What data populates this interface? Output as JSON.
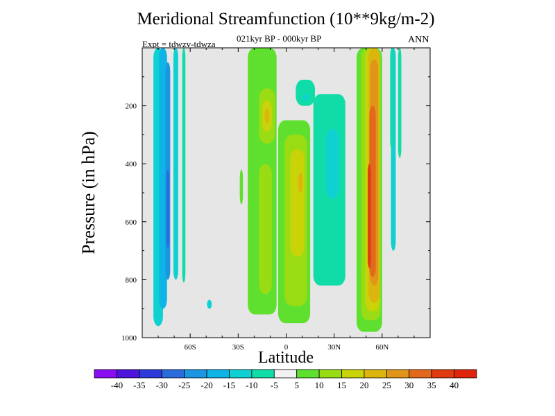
{
  "chart_data": {
    "type": "heatmap",
    "title": "Meridional Streamfunction (10**9kg/m-2)",
    "subtitle": "021kyr BP - 000kyr BP",
    "left_label": "Expt = tdwzv-tdwza",
    "right_label": "ANN",
    "xlabel": "Latitude",
    "ylabel": "Pressure (in hPa)",
    "xlim": [
      -90,
      90
    ],
    "ylim": [
      1000,
      0
    ],
    "x_ticks": [
      {
        "value": -60,
        "label": "60S"
      },
      {
        "value": -30,
        "label": "30S"
      },
      {
        "value": 0,
        "label": "0"
      },
      {
        "value": 30,
        "label": "30N"
      },
      {
        "value": 60,
        "label": "60N"
      }
    ],
    "y_ticks": [
      {
        "value": 200,
        "label": "200"
      },
      {
        "value": 400,
        "label": "400"
      },
      {
        "value": 600,
        "label": "600"
      },
      {
        "value": 800,
        "label": "800"
      },
      {
        "value": 1000,
        "label": "1000"
      }
    ],
    "zero_band_color": "#e6e6e6",
    "levels": [
      {
        "label": "-40",
        "color": "#8a0cf0"
      },
      {
        "label": "-35",
        "color": "#4d15dc"
      },
      {
        "label": "-30",
        "color": "#2f3adb"
      },
      {
        "label": "-25",
        "color": "#2b6cdc"
      },
      {
        "label": "-20",
        "color": "#1b97e2"
      },
      {
        "label": "-15",
        "color": "#0db4e5"
      },
      {
        "label": "-10",
        "color": "#0fd1d1"
      },
      {
        "label": "-5",
        "color": "#10dca8"
      },
      {
        "label": "5",
        "color": "#f2f2f2"
      },
      {
        "label": "10",
        "color": "#5fe02e"
      },
      {
        "label": "15",
        "color": "#9adc14"
      },
      {
        "label": "20",
        "color": "#c8d308"
      },
      {
        "label": "25",
        "color": "#dcb60e"
      },
      {
        "label": "30",
        "color": "#e0951a"
      },
      {
        "label": "35",
        "color": "#e2691c"
      },
      {
        "label": "40",
        "color": "#e03c10"
      },
      {
        "label": "",
        "color": "#e0240c"
      }
    ],
    "cells": [
      {
        "lat": -80,
        "p1": 0,
        "p2": 960,
        "w": 6,
        "v": -10
      },
      {
        "lat": -77,
        "p1": 0,
        "p2": 900,
        "w": 5,
        "v": -15
      },
      {
        "lat": -74,
        "p1": 50,
        "p2": 800,
        "w": 3,
        "v": -20
      },
      {
        "lat": -74,
        "p1": 420,
        "p2": 690,
        "w": 2,
        "v": -25
      },
      {
        "lat": -69,
        "p1": 0,
        "p2": 800,
        "w": 3,
        "v": -10
      },
      {
        "lat": -64,
        "p1": 0,
        "p2": 810,
        "w": 2,
        "v": -5
      },
      {
        "lat": -48,
        "p1": 870,
        "p2": 900,
        "w": 3,
        "v": -10
      },
      {
        "lat": -28,
        "p1": 420,
        "p2": 540,
        "w": 2,
        "v": 10
      },
      {
        "lat": -15,
        "p1": 0,
        "p2": 920,
        "w": 18,
        "v": 10
      },
      {
        "lat": -12,
        "p1": 140,
        "p2": 330,
        "w": 10,
        "v": 15
      },
      {
        "lat": -12,
        "p1": 180,
        "p2": 290,
        "w": 6,
        "v": 20
      },
      {
        "lat": -12,
        "p1": 210,
        "p2": 260,
        "w": 3,
        "v": 25
      },
      {
        "lat": -13,
        "p1": 400,
        "p2": 850,
        "w": 8,
        "v": 15
      },
      {
        "lat": 5,
        "p1": 250,
        "p2": 950,
        "w": 20,
        "v": 10
      },
      {
        "lat": 6,
        "p1": 300,
        "p2": 890,
        "w": 14,
        "v": 15
      },
      {
        "lat": 7,
        "p1": 350,
        "p2": 720,
        "w": 9,
        "v": 20
      },
      {
        "lat": 9,
        "p1": 430,
        "p2": 500,
        "w": 3,
        "v": 25
      },
      {
        "lat": 12,
        "p1": 110,
        "p2": 200,
        "w": 12,
        "v": -5
      },
      {
        "lat": 12,
        "p1": 160,
        "p2": 180,
        "w": 4,
        "v": -10
      },
      {
        "lat": 27,
        "p1": 160,
        "p2": 820,
        "w": 20,
        "v": -5
      },
      {
        "lat": 29,
        "p1": 280,
        "p2": 520,
        "w": 8,
        "v": -10
      },
      {
        "lat": 52,
        "p1": 0,
        "p2": 980,
        "w": 16,
        "v": 10
      },
      {
        "lat": 53,
        "p1": 0,
        "p2": 940,
        "w": 12,
        "v": 15
      },
      {
        "lat": 54,
        "p1": 0,
        "p2": 910,
        "w": 9,
        "v": 20
      },
      {
        "lat": 55,
        "p1": 0,
        "p2": 880,
        "w": 7,
        "v": 25
      },
      {
        "lat": 55,
        "p1": 40,
        "p2": 820,
        "w": 5,
        "v": 30
      },
      {
        "lat": 54,
        "p1": 200,
        "p2": 790,
        "w": 4,
        "v": 35
      },
      {
        "lat": 52,
        "p1": 400,
        "p2": 760,
        "w": 2,
        "v": 40
      },
      {
        "lat": 67,
        "p1": 0,
        "p2": 700,
        "w": 3,
        "v": -10
      },
      {
        "lat": 66,
        "p1": 0,
        "p2": 350,
        "w": 2,
        "v": -5
      },
      {
        "lat": 71,
        "p1": 0,
        "p2": 380,
        "w": 2,
        "v": -5
      }
    ]
  }
}
